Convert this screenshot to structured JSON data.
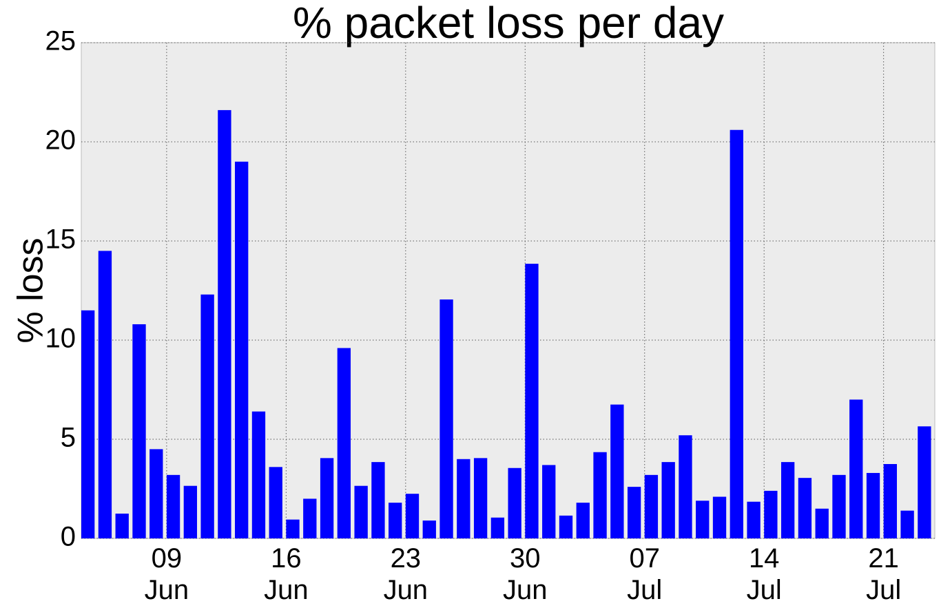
{
  "chart_data": {
    "type": "bar",
    "title": "% packet loss per day",
    "ylabel": "% loss",
    "categories": [
      null,
      null,
      null,
      null,
      null,
      [
        "09",
        "Jun"
      ],
      null,
      null,
      null,
      null,
      null,
      null,
      [
        "16",
        "Jun"
      ],
      null,
      null,
      null,
      null,
      null,
      null,
      [
        "23",
        "Jun"
      ],
      null,
      null,
      null,
      null,
      null,
      null,
      [
        "30",
        "Jun"
      ],
      null,
      null,
      null,
      null,
      null,
      null,
      [
        "07",
        "Jul"
      ],
      null,
      null,
      null,
      null,
      null,
      null,
      [
        "14",
        "Jul"
      ],
      null,
      null,
      null,
      null,
      null,
      null,
      [
        "21",
        "Jul"
      ],
      null,
      null
    ],
    "values": [
      11.5,
      14.5,
      1.25,
      10.8,
      4.5,
      3.2,
      2.65,
      12.3,
      21.6,
      19.0,
      6.4,
      3.6,
      0.95,
      2.0,
      4.05,
      9.6,
      2.65,
      3.85,
      1.8,
      2.25,
      0.9,
      12.05,
      4.0,
      4.05,
      1.05,
      3.55,
      13.85,
      3.7,
      1.15,
      1.8,
      4.35,
      6.75,
      2.6,
      3.2,
      3.85,
      5.2,
      1.9,
      2.1,
      20.6,
      1.85,
      2.4,
      3.85,
      3.05,
      1.5,
      3.2,
      7.0,
      3.3,
      3.75,
      1.4,
      5.65
    ],
    "color": "#0000ff",
    "ylim": [
      0,
      25
    ],
    "yticks": [
      0,
      5,
      10,
      15,
      20,
      25
    ],
    "grid": true
  }
}
